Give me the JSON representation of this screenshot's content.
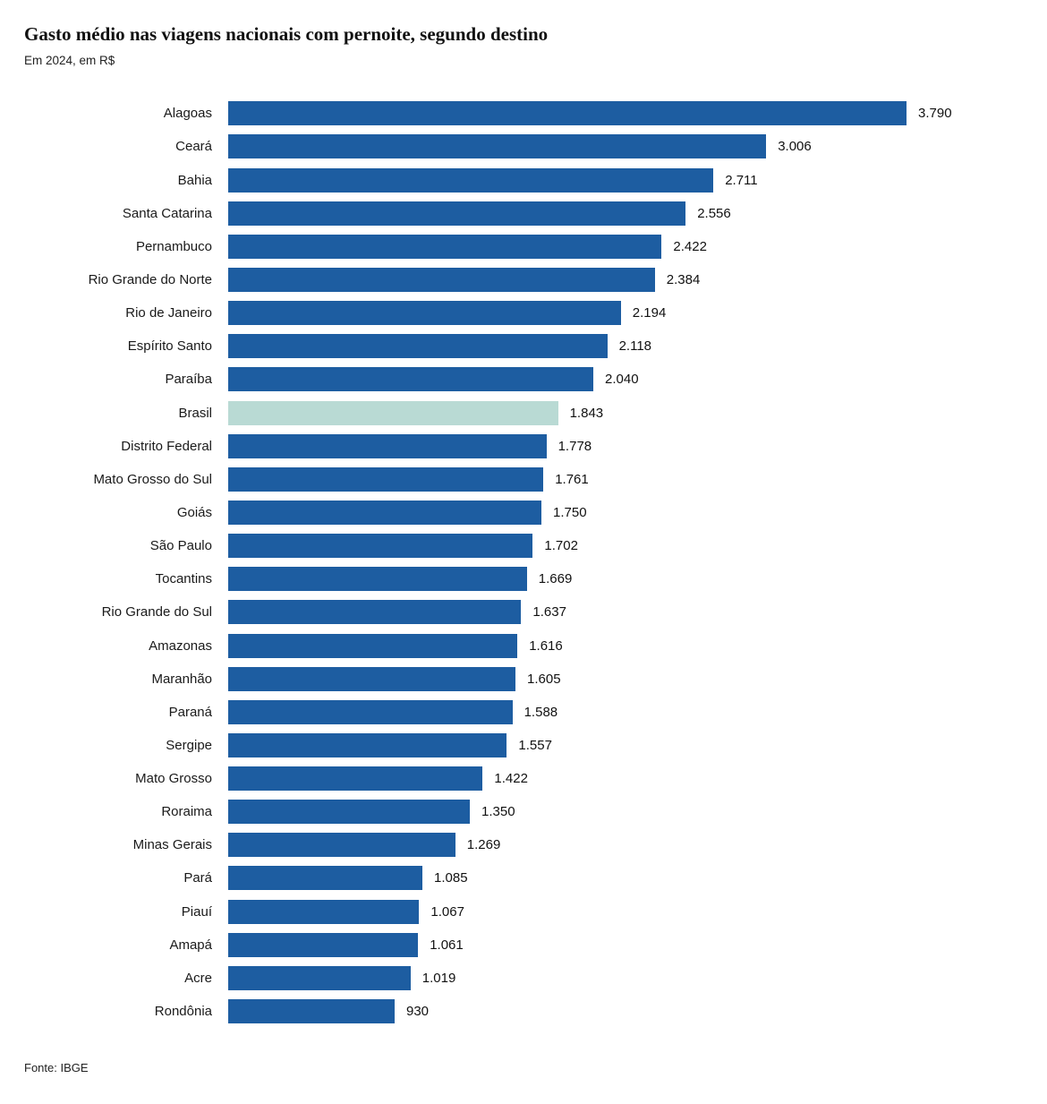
{
  "header": {
    "title": "Gasto médio nas viagens nacionais com pernoite, segundo destino",
    "subtitle": "Em 2024, em R$"
  },
  "footer": {
    "source": "Fonte: IBGE"
  },
  "colors": {
    "bar": "#1d5da1",
    "highlight_bar": "#b9dad4",
    "text": "#111111"
  },
  "chart_data": {
    "type": "bar",
    "orientation": "horizontal",
    "title": "Gasto médio nas viagens nacionais com pernoite, segundo destino",
    "subtitle": "Em 2024, em R$",
    "source": "Fonte: IBGE",
    "unit": "R$",
    "xlim": [
      0,
      3790
    ],
    "grid": false,
    "legend": "none",
    "highlight_category": "Brasil",
    "categories": [
      "Alagoas",
      "Ceará",
      "Bahia",
      "Santa Catarina",
      "Pernambuco",
      "Rio Grande do Norte",
      "Rio de Janeiro",
      "Espírito Santo",
      "Paraíba",
      "Brasil",
      "Distrito Federal",
      "Mato Grosso do Sul",
      "Goiás",
      "São Paulo",
      "Tocantins",
      "Rio Grande do Sul",
      "Amazonas",
      "Maranhão",
      "Paraná",
      "Sergipe",
      "Mato Grosso",
      "Roraima",
      "Minas Gerais",
      "Pará",
      "Piauí",
      "Amapá",
      "Acre",
      "Rondônia"
    ],
    "values": [
      3790,
      3006,
      2711,
      2556,
      2422,
      2384,
      2194,
      2118,
      2040,
      1843,
      1778,
      1761,
      1750,
      1702,
      1669,
      1637,
      1616,
      1605,
      1588,
      1557,
      1422,
      1350,
      1269,
      1085,
      1067,
      1061,
      1019,
      930
    ],
    "value_labels": [
      "3.790",
      "3.006",
      "2.711",
      "2.556",
      "2.422",
      "2.384",
      "2.194",
      "2.118",
      "2.040",
      "1.843",
      "1.778",
      "1.761",
      "1.750",
      "1.702",
      "1.669",
      "1.637",
      "1.616",
      "1.605",
      "1.588",
      "1.557",
      "1.422",
      "1.350",
      "1.269",
      "1.085",
      "1.067",
      "1.061",
      "1.019",
      "930"
    ]
  }
}
